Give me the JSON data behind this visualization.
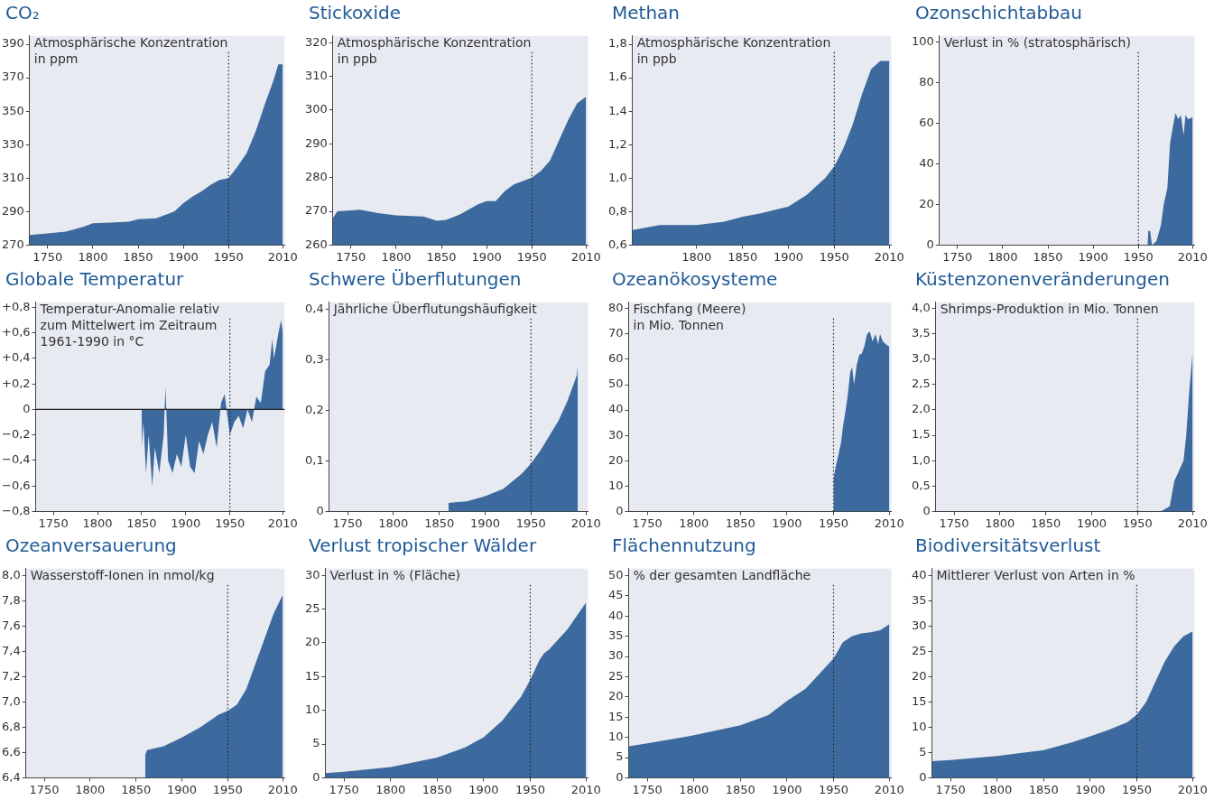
{
  "chart_data": [
    {
      "type": "area",
      "title": "CO₂",
      "annotations": [
        "Atmosphärische Konzentration\nin ppm"
      ],
      "xlim": [
        1730,
        2012
      ],
      "xticks": [
        1750,
        1800,
        1850,
        1900,
        1950,
        2010
      ],
      "ylim": [
        270,
        395
      ],
      "yticks": [
        270,
        290,
        310,
        330,
        350,
        370,
        390
      ],
      "grid": false,
      "legend": false,
      "ref_lines": [
        {
          "axis": "x",
          "value": 1950,
          "line_style": "dotted",
          "color": "#222222"
        }
      ],
      "x": [
        1730,
        1750,
        1770,
        1790,
        1800,
        1820,
        1840,
        1850,
        1870,
        1880,
        1890,
        1900,
        1910,
        1920,
        1930,
        1940,
        1950,
        1960,
        1970,
        1980,
        1990,
        2000,
        2005,
        2010
      ],
      "series": [
        {
          "color": "#3d6a9e",
          "values": [
            276,
            277,
            278,
            281,
            283,
            283.5,
            284,
            285.5,
            286,
            288,
            290,
            295,
            299,
            302,
            306,
            309,
            310,
            317,
            325,
            338,
            354,
            369,
            378,
            378
          ]
        }
      ]
    },
    {
      "type": "area",
      "title": "Stickoxide",
      "annotations": [
        "Atmosphärische Konzentration\nin ppb"
      ],
      "xlim": [
        1730,
        2012
      ],
      "xticks": [
        1750,
        1800,
        1850,
        1900,
        1950,
        2010
      ],
      "ylim": [
        260,
        322
      ],
      "yticks": [
        260,
        270,
        280,
        290,
        300,
        310,
        320
      ],
      "grid": false,
      "legend": false,
      "ref_lines": [
        {
          "axis": "x",
          "value": 1950,
          "line_style": "dotted",
          "color": "#222222"
        }
      ],
      "x": [
        1730,
        1735,
        1760,
        1780,
        1800,
        1830,
        1845,
        1855,
        1870,
        1890,
        1900,
        1910,
        1920,
        1930,
        1940,
        1950,
        1960,
        1970,
        1980,
        1990,
        2000,
        2010
      ],
      "series": [
        {
          "color": "#3d6a9e",
          "values": [
            268,
            270,
            270.5,
            269.5,
            268.8,
            268.5,
            267.2,
            267.5,
            269,
            272,
            273,
            273,
            276,
            278,
            279,
            280,
            282,
            285,
            291,
            297,
            302,
            304
          ]
        }
      ]
    },
    {
      "type": "area",
      "title": "Methan",
      "annotations": [
        "Atmosphärische Konzentration\nin ppb"
      ],
      "xlim": [
        1730,
        2012
      ],
      "xticks": [
        1800,
        1850,
        1900,
        1950,
        2010
      ],
      "ylim": [
        0.6,
        1.85
      ],
      "yticks": [
        {
          "value": 0.6,
          "label": "0,6"
        },
        {
          "value": 0.8,
          "label": "0,8"
        },
        {
          "value": 1.0,
          "label": "1,0"
        },
        {
          "value": 1.2,
          "label": "1,2"
        },
        {
          "value": 1.4,
          "label": "1,4"
        },
        {
          "value": 1.6,
          "label": "1,6"
        },
        {
          "value": 1.8,
          "label": "1,8"
        }
      ],
      "grid": false,
      "legend": false,
      "ref_lines": [
        {
          "axis": "x",
          "value": 1950,
          "line_style": "dotted",
          "color": "#222222"
        }
      ],
      "x": [
        1730,
        1760,
        1800,
        1830,
        1850,
        1870,
        1900,
        1920,
        1940,
        1950,
        1960,
        1970,
        1980,
        1990,
        2000,
        2010
      ],
      "series": [
        {
          "color": "#3d6a9e",
          "values": [
            0.69,
            0.72,
            0.72,
            0.74,
            0.77,
            0.79,
            0.83,
            0.9,
            1.0,
            1.07,
            1.18,
            1.32,
            1.5,
            1.65,
            1.7,
            1.7
          ]
        }
      ]
    },
    {
      "type": "area",
      "title": "Ozonschichtabbau",
      "annotations": [
        "Verlust in % (stratosphärisch)"
      ],
      "xlim": [
        1730,
        2012
      ],
      "xticks": [
        1750,
        1800,
        1850,
        1900,
        1950,
        2010
      ],
      "ylim": [
        0,
        103
      ],
      "yticks": [
        0,
        20,
        40,
        60,
        80,
        100
      ],
      "grid": false,
      "legend": false,
      "ref_lines": [
        {
          "axis": "x",
          "value": 1950,
          "line_style": "dotted",
          "color": "#222222"
        }
      ],
      "x": [
        1960,
        1961,
        1963,
        1965,
        1970,
        1975,
        1978,
        1982,
        1985,
        1988,
        1991,
        1994,
        1997,
        2000,
        2002,
        2005,
        2010
      ],
      "series": [
        {
          "color": "#3d6a9e",
          "values": [
            0,
            7,
            7,
            0,
            2,
            10,
            20,
            28,
            50,
            58,
            65,
            62,
            64,
            54,
            64,
            62,
            63
          ]
        }
      ]
    },
    {
      "type": "area",
      "title": "Globale Temperatur",
      "annotations": [
        "Temperatur-Anomalie relativ\nzum Mittelwert im Zeitraum\n1961-1990 in °C"
      ],
      "xlim": [
        1730,
        2012
      ],
      "xticks": [
        1750,
        1800,
        1850,
        1900,
        1950,
        2010
      ],
      "ylim": [
        -0.8,
        0.84
      ],
      "yticks": [
        {
          "value": -0.8,
          "label": "−0,8"
        },
        {
          "value": -0.6,
          "label": "−0,6"
        },
        {
          "value": -0.4,
          "label": "−0,4"
        },
        {
          "value": -0.2,
          "label": "−0,2"
        },
        {
          "value": 0,
          "label": "0"
        },
        {
          "value": 0.2,
          "label": "+0,2"
        },
        {
          "value": 0.4,
          "label": "+0,4"
        },
        {
          "value": 0.6,
          "label": "+0,6"
        },
        {
          "value": 0.8,
          "label": "+0,8"
        }
      ],
      "grid": false,
      "legend": false,
      "ref_lines": [
        {
          "axis": "x",
          "value": 1950,
          "line_style": "dotted",
          "color": "#222222"
        },
        {
          "axis": "y",
          "value": 0,
          "line_style": "solid",
          "color": "#222222"
        }
      ],
      "x": [
        1850,
        1852,
        1855,
        1858,
        1862,
        1865,
        1870,
        1875,
        1877,
        1880,
        1885,
        1890,
        1895,
        1900,
        1905,
        1910,
        1915,
        1920,
        1925,
        1930,
        1935,
        1940,
        1944,
        1950,
        1955,
        1960,
        1965,
        1970,
        1975,
        1980,
        1985,
        1990,
        1995,
        1998,
        2000,
        2005,
        2008,
        2010
      ],
      "series": [
        {
          "color": "#3d6a9e",
          "values": [
            -0.3,
            -0.1,
            -0.5,
            -0.2,
            -0.6,
            -0.3,
            -0.5,
            -0.2,
            0.18,
            -0.4,
            -0.5,
            -0.35,
            -0.45,
            -0.2,
            -0.45,
            -0.5,
            -0.25,
            -0.35,
            -0.2,
            -0.1,
            -0.3,
            0.05,
            0.12,
            -0.2,
            -0.1,
            -0.05,
            -0.15,
            0.0,
            -0.1,
            0.1,
            0.05,
            0.3,
            0.35,
            0.55,
            0.4,
            0.6,
            0.7,
            0.6
          ]
        }
      ]
    },
    {
      "type": "area",
      "title": "Schwere Überflutungen",
      "annotations": [
        "Jährliche Überflutungshäufigkeit"
      ],
      "xlim": [
        1730,
        2012
      ],
      "xticks": [
        1750,
        1800,
        1850,
        1900,
        1950,
        2010
      ],
      "ylim": [
        0,
        0.414
      ],
      "yticks": [
        {
          "value": 0,
          "label": "0"
        },
        {
          "value": 0.1,
          "label": "0,1"
        },
        {
          "value": 0.2,
          "label": "0,2"
        },
        {
          "value": 0.3,
          "label": "0,3"
        },
        {
          "value": 0.4,
          "label": "0,4"
        }
      ],
      "grid": false,
      "legend": false,
      "ref_lines": [
        {
          "axis": "x",
          "value": 1950,
          "line_style": "dotted",
          "color": "#222222"
        }
      ],
      "x": [
        1860,
        1880,
        1900,
        1920,
        1940,
        1950,
        1960,
        1970,
        1980,
        1990,
        2000,
        2001
      ],
      "series": [
        {
          "color": "#3d6a9e",
          "values": [
            0.017,
            0.02,
            0.03,
            0.045,
            0.075,
            0.095,
            0.12,
            0.15,
            0.18,
            0.22,
            0.27,
            0.29
          ]
        }
      ]
    },
    {
      "type": "area",
      "title": "Ozeanökosysteme",
      "annotations": [
        "Fischfang (Meere)\nin Mio. Tonnen"
      ],
      "xlim": [
        1730,
        2012
      ],
      "xticks": [
        1750,
        1800,
        1850,
        1900,
        1950,
        2010
      ],
      "ylim": [
        0,
        82.5
      ],
      "yticks": [
        0,
        10,
        20,
        30,
        40,
        50,
        60,
        70,
        80
      ],
      "grid": false,
      "legend": false,
      "ref_lines": [
        {
          "axis": "x",
          "value": 1950,
          "line_style": "dotted",
          "color": "#222222"
        }
      ],
      "x": [
        1950,
        1952,
        1955,
        1958,
        1960,
        1963,
        1965,
        1968,
        1970,
        1972,
        1975,
        1978,
        1980,
        1983,
        1986,
        1989,
        1992,
        1995,
        1998,
        2000,
        2003,
        2006,
        2010
      ],
      "series": [
        {
          "color": "#3d6a9e",
          "values": [
            13,
            17,
            22,
            27,
            33,
            40,
            45,
            55,
            57,
            50,
            58,
            62,
            62,
            65,
            70,
            71,
            67,
            70,
            66,
            70,
            67,
            66,
            65
          ]
        }
      ]
    },
    {
      "type": "area",
      "title": "Küstenzonenveränderungen",
      "annotations": [
        "Shrimps-Produktion in Mio. Tonnen"
      ],
      "xlim": [
        1730,
        2012
      ],
      "xticks": [
        1750,
        1800,
        1850,
        1900,
        1950,
        2010
      ],
      "ylim": [
        0,
        4.12
      ],
      "yticks": [
        {
          "value": 0,
          "label": "0"
        },
        {
          "value": 0.5,
          "label": "0,5"
        },
        {
          "value": 1,
          "label": "1,0"
        },
        {
          "value": 1.5,
          "label": "1,5"
        },
        {
          "value": 2,
          "label": "2,0"
        },
        {
          "value": 2.5,
          "label": "2,5"
        },
        {
          "value": 3,
          "label": "3,0"
        },
        {
          "value": 3.5,
          "label": "3,5"
        },
        {
          "value": 4,
          "label": "4,0"
        }
      ],
      "grid": false,
      "legend": false,
      "ref_lines": [
        {
          "axis": "x",
          "value": 1950,
          "line_style": "dotted",
          "color": "#222222"
        }
      ],
      "x": [
        1975,
        1985,
        1990,
        1995,
        2000,
        2003,
        2006,
        2010
      ],
      "series": [
        {
          "color": "#3d6a9e",
          "values": [
            0,
            0.1,
            0.6,
            0.8,
            1.0,
            1.5,
            2.3,
            3.15
          ]
        }
      ]
    },
    {
      "type": "area",
      "title": "Ozeanversauerung",
      "annotations": [
        "Wasserstoff-Ionen in nmol/kg"
      ],
      "xlim": [
        1730,
        2012
      ],
      "xticks": [
        1750,
        1800,
        1850,
        1900,
        1950,
        2010
      ],
      "ylim": [
        6.4,
        8.056
      ],
      "yticks": [
        {
          "value": 6.4,
          "label": "6,4"
        },
        {
          "value": 6.6,
          "label": "6,6"
        },
        {
          "value": 6.8,
          "label": "6,8"
        },
        {
          "value": 7.0,
          "label": "7,0"
        },
        {
          "value": 7.2,
          "label": "7,2"
        },
        {
          "value": 7.4,
          "label": "7,4"
        },
        {
          "value": 7.6,
          "label": "7,6"
        },
        {
          "value": 7.8,
          "label": "7,8"
        },
        {
          "value": 8.0,
          "label": "8,0"
        }
      ],
      "grid": false,
      "legend": false,
      "ref_lines": [
        {
          "axis": "x",
          "value": 1950,
          "line_style": "dotted",
          "color": "#222222"
        }
      ],
      "x": [
        1860,
        1862,
        1880,
        1900,
        1920,
        1940,
        1950,
        1960,
        1970,
        1980,
        1990,
        2000,
        2010
      ],
      "series": [
        {
          "color": "#3d6a9e",
          "values": [
            6.58,
            6.62,
            6.65,
            6.72,
            6.8,
            6.9,
            6.93,
            6.98,
            7.1,
            7.3,
            7.5,
            7.7,
            7.85
          ]
        }
      ]
    },
    {
      "type": "area",
      "title": "Verlust tropischer Wälder",
      "annotations": [
        "Verlust in % (Fläche)"
      ],
      "xlim": [
        1730,
        2012
      ],
      "xticks": [
        1750,
        1800,
        1850,
        1900,
        1950,
        2010
      ],
      "ylim": [
        0,
        31
      ],
      "yticks": [
        0,
        5,
        10,
        15,
        20,
        25,
        30
      ],
      "grid": false,
      "legend": false,
      "ref_lines": [
        {
          "axis": "x",
          "value": 1950,
          "line_style": "dotted",
          "color": "#222222"
        }
      ],
      "x": [
        1730,
        1750,
        1800,
        1850,
        1880,
        1900,
        1920,
        1940,
        1950,
        1960,
        1965,
        1970,
        1980,
        1990,
        2000,
        2010
      ],
      "series": [
        {
          "color": "#3d6a9e",
          "values": [
            0.7,
            0.9,
            1.6,
            3,
            4.5,
            6,
            8.5,
            12,
            14.5,
            17.5,
            18.5,
            19,
            20.5,
            22,
            24,
            26
          ]
        }
      ]
    },
    {
      "type": "area",
      "title": "Flächennutzung",
      "annotations": [
        "% der gesamten Landfläche"
      ],
      "xlim": [
        1730,
        2012
      ],
      "xticks": [
        1750,
        1800,
        1850,
        1900,
        1950,
        2010
      ],
      "ylim": [
        0,
        51.7
      ],
      "yticks": [
        0,
        5,
        10,
        15,
        20,
        25,
        30,
        35,
        40,
        45,
        50
      ],
      "grid": false,
      "legend": false,
      "ref_lines": [
        {
          "axis": "x",
          "value": 1950,
          "line_style": "dotted",
          "color": "#222222"
        }
      ],
      "x": [
        1730,
        1750,
        1800,
        1850,
        1880,
        1900,
        1920,
        1940,
        1950,
        1960,
        1970,
        1980,
        1990,
        2000,
        2010
      ],
      "series": [
        {
          "color": "#3d6a9e",
          "values": [
            7.8,
            8.5,
            10.5,
            13,
            15.5,
            19,
            22,
            27,
            29.5,
            33.5,
            35,
            35.7,
            36,
            36.5,
            38
          ]
        }
      ]
    },
    {
      "type": "area",
      "title": "Biodiversitätsverlust",
      "annotations": [
        "Mittlerer Verlust von Arten in %"
      ],
      "xlim": [
        1730,
        2012
      ],
      "xticks": [
        1750,
        1800,
        1850,
        1900,
        1950,
        2010
      ],
      "ylim": [
        0,
        41.4
      ],
      "yticks": [
        0,
        5,
        10,
        15,
        20,
        25,
        30,
        35,
        40
      ],
      "grid": false,
      "legend": false,
      "ref_lines": [
        {
          "axis": "x",
          "value": 1950,
          "line_style": "dotted",
          "color": "#222222"
        }
      ],
      "x": [
        1730,
        1750,
        1800,
        1850,
        1880,
        1900,
        1920,
        1940,
        1950,
        1960,
        1970,
        1980,
        1990,
        2000,
        2010
      ],
      "series": [
        {
          "color": "#3d6a9e",
          "values": [
            3.3,
            3.5,
            4.3,
            5.5,
            7,
            8.2,
            9.5,
            11,
            12.5,
            15,
            19,
            23,
            26,
            28,
            29
          ]
        }
      ]
    }
  ]
}
